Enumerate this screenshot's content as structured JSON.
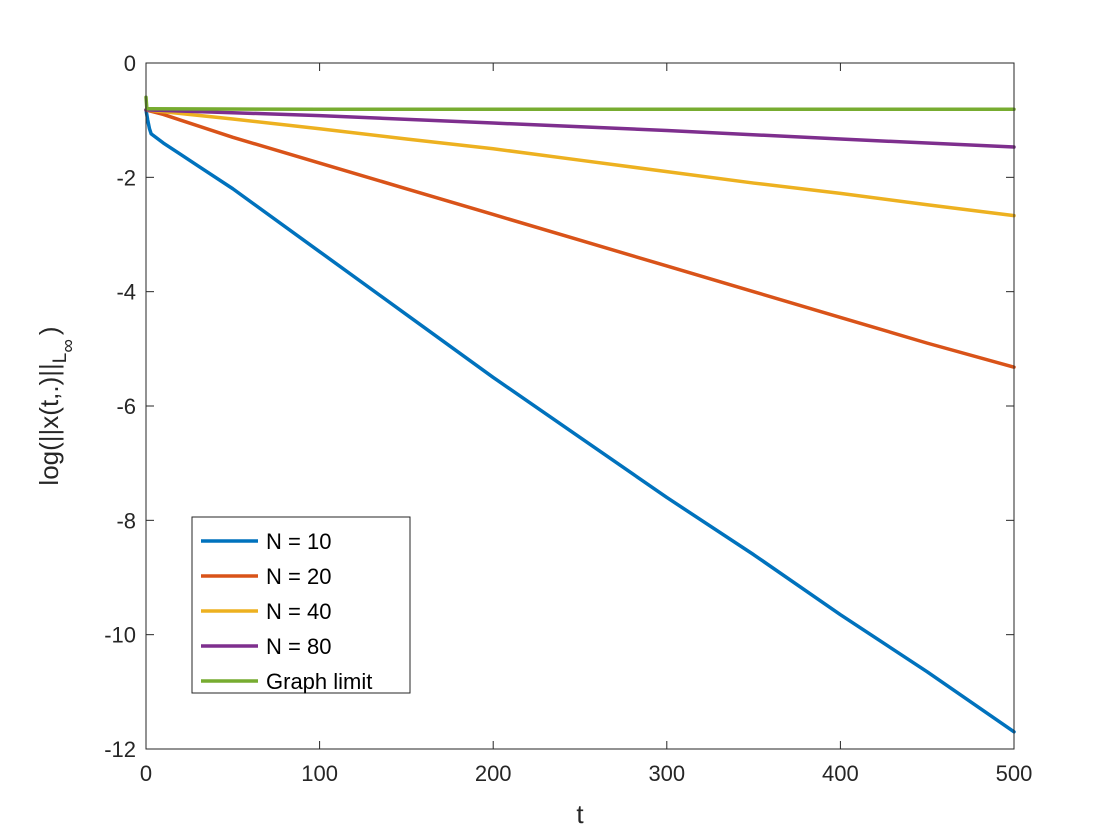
{
  "chart_data": {
    "type": "line",
    "xlabel": "t",
    "ylabel": "log(||x(t,.)||",
    "ylabel_sub": "L",
    "ylabel_sub2": "∞",
    "ylabel_close": ")",
    "xlim": [
      0,
      500
    ],
    "ylim": [
      -12,
      0
    ],
    "xticks": [
      0,
      100,
      200,
      300,
      400,
      500
    ],
    "yticks": [
      0,
      -2,
      -4,
      -6,
      -8,
      -10,
      -12
    ],
    "grid": false,
    "legend_position": "bottom-left",
    "series": [
      {
        "name": "N = 10",
        "color": "#0072BD",
        "points": [
          [
            0,
            -0.82
          ],
          [
            1,
            -1.0
          ],
          [
            2,
            -1.15
          ],
          [
            3,
            -1.24
          ],
          [
            10,
            -1.4
          ],
          [
            20,
            -1.6
          ],
          [
            30,
            -1.8
          ],
          [
            50,
            -2.2
          ],
          [
            100,
            -3.3
          ],
          [
            150,
            -4.4
          ],
          [
            200,
            -5.5
          ],
          [
            250,
            -6.55
          ],
          [
            300,
            -7.6
          ],
          [
            350,
            -8.6
          ],
          [
            400,
            -9.65
          ],
          [
            450,
            -10.65
          ],
          [
            500,
            -11.7
          ]
        ]
      },
      {
        "name": "N = 20",
        "color": "#D95319",
        "points": [
          [
            0,
            -0.82
          ],
          [
            10,
            -0.9
          ],
          [
            20,
            -1.0
          ],
          [
            50,
            -1.3
          ],
          [
            100,
            -1.75
          ],
          [
            150,
            -2.2
          ],
          [
            200,
            -2.65
          ],
          [
            250,
            -3.1
          ],
          [
            300,
            -3.55
          ],
          [
            350,
            -4.0
          ],
          [
            400,
            -4.45
          ],
          [
            450,
            -4.9
          ],
          [
            500,
            -5.32
          ]
        ]
      },
      {
        "name": "N = 40",
        "color": "#EDB120",
        "points": [
          [
            0,
            -0.82
          ],
          [
            50,
            -0.98
          ],
          [
            100,
            -1.15
          ],
          [
            150,
            -1.33
          ],
          [
            200,
            -1.5
          ],
          [
            250,
            -1.7
          ],
          [
            300,
            -1.9
          ],
          [
            350,
            -2.1
          ],
          [
            400,
            -2.28
          ],
          [
            450,
            -2.48
          ],
          [
            500,
            -2.67
          ]
        ]
      },
      {
        "name": "N = 80",
        "color": "#7E2F8E",
        "points": [
          [
            0,
            -0.82
          ],
          [
            100,
            -0.92
          ],
          [
            200,
            -1.05
          ],
          [
            300,
            -1.18
          ],
          [
            400,
            -1.33
          ],
          [
            500,
            -1.47
          ]
        ]
      },
      {
        "name": "Graph limit",
        "color": "#77AC30",
        "points": [
          [
            0,
            -0.6
          ],
          [
            0.5,
            -0.8
          ],
          [
            2,
            -0.8
          ],
          [
            100,
            -0.81
          ],
          [
            200,
            -0.81
          ],
          [
            300,
            -0.81
          ],
          [
            400,
            -0.81
          ],
          [
            500,
            -0.81
          ]
        ]
      }
    ]
  }
}
